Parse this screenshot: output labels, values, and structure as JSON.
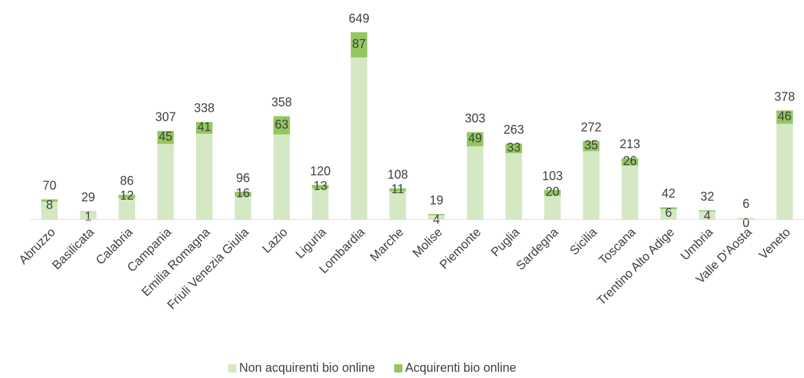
{
  "chart_data": {
    "type": "bar",
    "categories": [
      "Abruzzo",
      "Basilicata",
      "Calabria",
      "Campania",
      "Emilia Romagna",
      "Friuli Venezia Giulia",
      "Lazio",
      "Liguria",
      "Lombardia",
      "Marche",
      "Molise",
      "Piemonte",
      "Puglia",
      "Sardegna",
      "Sicilia",
      "Toscana",
      "Trentino Alto Adige",
      "Umbria",
      "Valle D'Aosta",
      "Veneto"
    ],
    "series": [
      {
        "name": "Non acquirenti bio online",
        "color": "#d5e8c4",
        "values": [
          70,
          29,
          86,
          307,
          338,
          96,
          358,
          120,
          649,
          108,
          19,
          303,
          263,
          103,
          272,
          213,
          42,
          32,
          6,
          378
        ]
      },
      {
        "name": "Acquirenti bio online",
        "color": "#93c760",
        "values": [
          8,
          1,
          12,
          45,
          41,
          16,
          63,
          13,
          87,
          11,
          4,
          49,
          33,
          20,
          35,
          26,
          6,
          4,
          0,
          46
        ]
      }
    ],
    "ylim": [
      0,
      700
    ],
    "legend": "bottom"
  }
}
